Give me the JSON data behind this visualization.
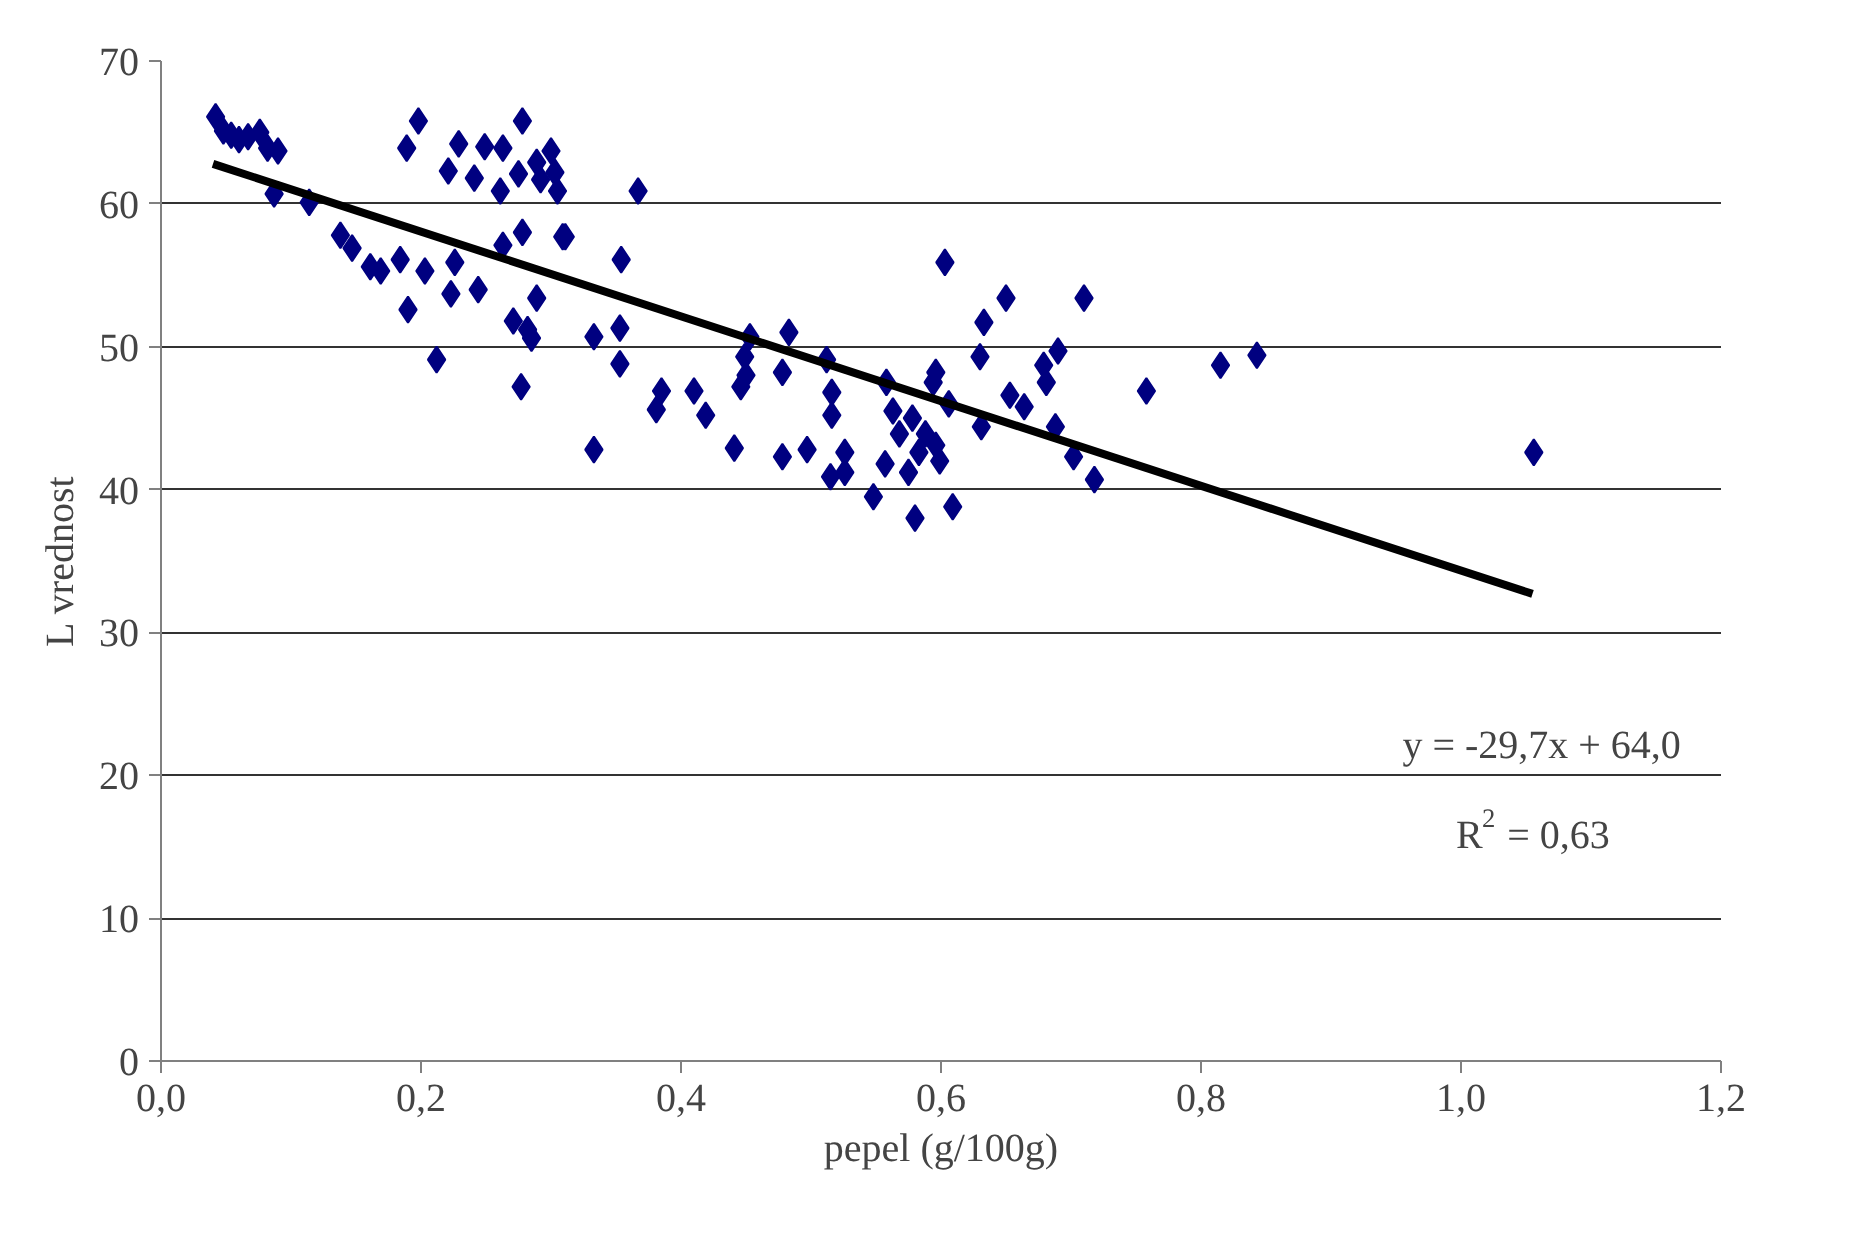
{
  "chart_data": {
    "type": "scatter",
    "xlabel": "pepel (g/100g)",
    "ylabel": "L vrednost",
    "xlim": [
      0,
      1.2
    ],
    "ylim": [
      0,
      70
    ],
    "xticks": [
      {
        "value": 0,
        "label": "0,0"
      },
      {
        "value": 0.2,
        "label": "0,2"
      },
      {
        "value": 0.4,
        "label": "0,4"
      },
      {
        "value": 0.6,
        "label": "0,6"
      },
      {
        "value": 0.8,
        "label": "0,8"
      },
      {
        "value": 1.0,
        "label": "1,0"
      },
      {
        "value": 1.2,
        "label": "1,2"
      }
    ],
    "yticks": [
      0,
      10,
      20,
      30,
      40,
      50,
      60,
      70
    ],
    "grid": "y",
    "marker": "diamond",
    "annotations": [
      "y = -29,7x + 64,0",
      "R$^{2}$ = 0,63"
    ],
    "series": [
      {
        "color": "#000080",
        "x": [
          0.042,
          0.048,
          0.054,
          0.06,
          0.067,
          0.076,
          0.082,
          0.09,
          0.087,
          0.114,
          0.138,
          0.147,
          0.161,
          0.169,
          0.184,
          0.19,
          0.189,
          0.198,
          0.203,
          0.212,
          0.221,
          0.229,
          0.223,
          0.226,
          0.241,
          0.249,
          0.244,
          0.263,
          0.261,
          0.263,
          0.271,
          0.278,
          0.275,
          0.278,
          0.282,
          0.285,
          0.277,
          0.289,
          0.292,
          0.3,
          0.303,
          0.305,
          0.289,
          0.311,
          0.367,
          0.309,
          0.354,
          0.333,
          0.353,
          0.353,
          0.333,
          0.385,
          0.381,
          0.41,
          0.419,
          0.441,
          0.453,
          0.449,
          0.45,
          0.446,
          0.478,
          0.483,
          0.478,
          0.497,
          0.512,
          0.516,
          0.516,
          0.515,
          0.526,
          0.526,
          0.548,
          0.558,
          0.603,
          0.633,
          0.63,
          0.65,
          0.609,
          0.58,
          0.631,
          0.653,
          0.563,
          0.568,
          0.578,
          0.588,
          0.596,
          0.575,
          0.557,
          0.594,
          0.606,
          0.599,
          0.583,
          0.71,
          0.679,
          0.69,
          0.681,
          0.664,
          0.688,
          0.702,
          0.718,
          0.758,
          0.815,
          0.843,
          0.596,
          1.056
        ],
        "values": [
          66.1,
          65.1,
          64.8,
          64.5,
          64.7,
          65.0,
          63.9,
          63.7,
          60.7,
          60.1,
          57.8,
          56.9,
          55.6,
          55.3,
          56.1,
          52.6,
          63.9,
          65.8,
          55.3,
          49.1,
          62.3,
          64.2,
          53.7,
          55.9,
          61.8,
          64.0,
          54.0,
          63.9,
          60.9,
          57.1,
          51.8,
          65.8,
          62.1,
          58.0,
          51.2,
          50.6,
          47.2,
          62.9,
          61.7,
          63.7,
          62.2,
          60.9,
          53.4,
          57.7,
          60.9,
          57.7,
          56.1,
          50.7,
          51.3,
          48.8,
          42.8,
          46.9,
          45.6,
          46.9,
          45.2,
          42.9,
          50.7,
          49.3,
          48.0,
          47.2,
          48.2,
          51.0,
          42.3,
          42.8,
          49.1,
          46.8,
          45.2,
          40.9,
          42.6,
          41.2,
          39.5,
          47.5,
          55.9,
          51.7,
          49.3,
          53.4,
          38.8,
          38.0,
          44.4,
          46.6,
          45.5,
          43.9,
          45.0,
          43.9,
          43.1,
          41.2,
          41.8,
          47.5,
          46.0,
          42.0,
          42.6,
          53.4,
          48.7,
          49.7,
          47.5,
          45.8,
          44.4,
          42.3,
          40.7,
          46.9,
          48.7,
          49.4,
          48.2,
          42.6
        ]
      },
      {
        "type": "line",
        "color": "#000000",
        "x": [
          0.04,
          1.055
        ],
        "values": [
          62.8,
          32.7
        ],
        "marker": "none",
        "line_style": "solid"
      }
    ]
  }
}
